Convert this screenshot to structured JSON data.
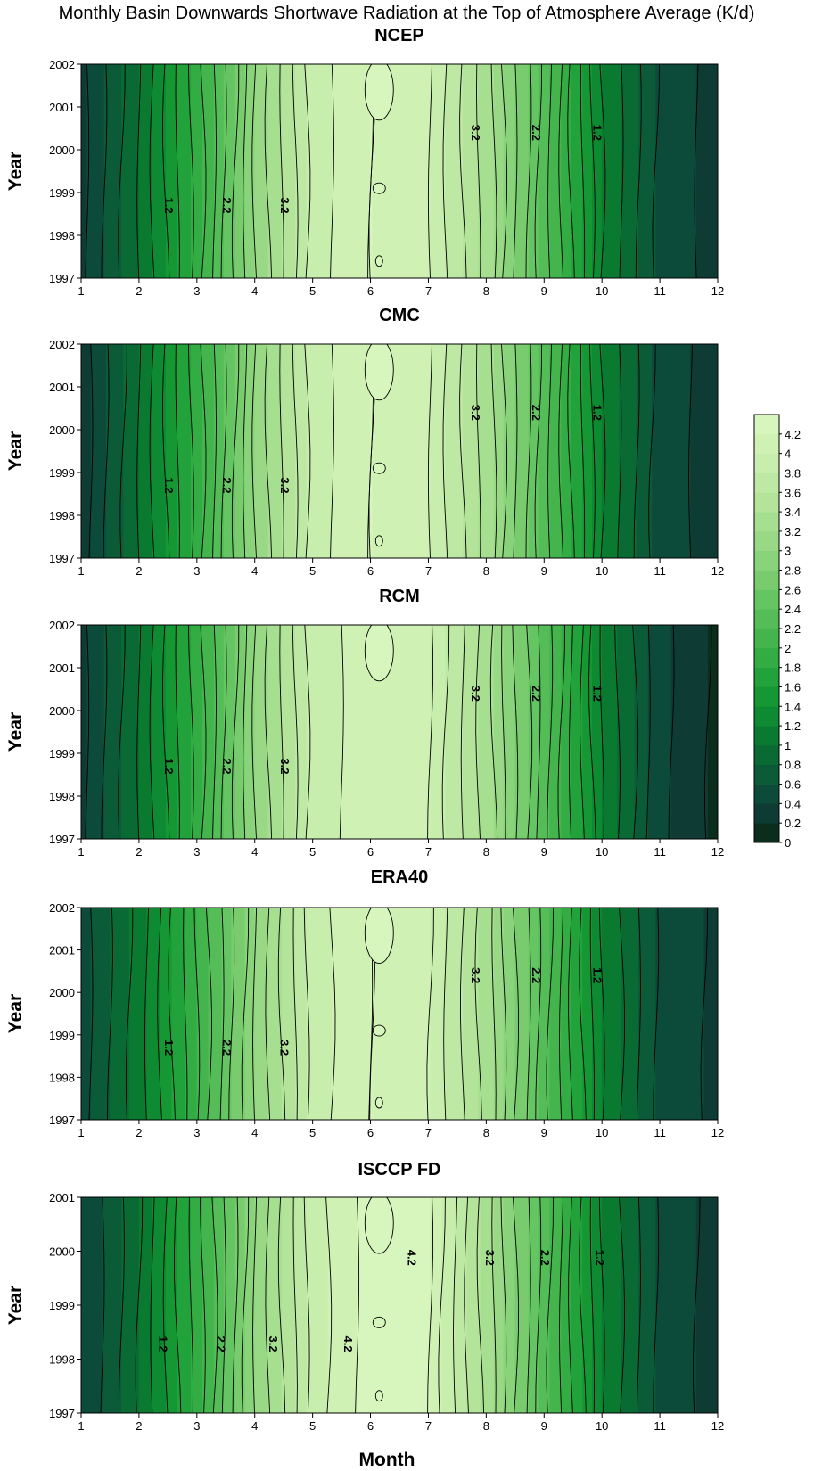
{
  "chart_data": {
    "type": "heatmap",
    "title": "Monthly Basin Downwards Shortwave Radiation at the Top of Atmosphere Average (K/d)",
    "xlabel": "Month",
    "ylabel": "Year",
    "x_ticks": [
      "1",
      "2",
      "3",
      "4",
      "5",
      "6",
      "7",
      "8",
      "9",
      "10",
      "11",
      "12"
    ],
    "xlim": [
      1,
      12
    ],
    "months": [
      1,
      2,
      3,
      4,
      5,
      6,
      7,
      8,
      9,
      10,
      11,
      12
    ],
    "colorbar": {
      "ticks": [
        "0",
        "0.2",
        "0.4",
        "0.6",
        "0.8",
        "1",
        "1.2",
        "1.4",
        "1.6",
        "1.8",
        "2",
        "2.2",
        "2.4",
        "2.6",
        "2.8",
        "3",
        "3.2",
        "3.4",
        "3.6",
        "3.8",
        "4",
        "4.2"
      ],
      "range": [
        0,
        4.4
      ],
      "step": 0.2,
      "colors": [
        "#0b2e1c",
        "#0e3b33",
        "#0c4a3a",
        "#0b5a38",
        "#0a6a34",
        "#0b7a31",
        "#0d8a32",
        "#159834",
        "#22a23a",
        "#32ac43",
        "#44b54d",
        "#55bd58",
        "#66c563",
        "#78cc6e",
        "#89d37a",
        "#99d985",
        "#a7df90",
        "#b3e49a",
        "#bee9a4",
        "#c7eeac",
        "#cff2b4",
        "#d7f6bd"
      ]
    },
    "panels": [
      {
        "name": "NCEP",
        "y_ticks": [
          "1997",
          "1998",
          "1999",
          "2000",
          "2001",
          "2002"
        ],
        "ylim": [
          1997,
          2002
        ],
        "profile": [
          0.35,
          1.0,
          1.9,
          3.0,
          3.9,
          4.2,
          4.0,
          3.3,
          2.3,
          1.2,
          0.55,
          0.3
        ],
        "contour_labels": [
          "1.2",
          "2.2",
          "3.2",
          "3.2",
          "2.2",
          "1.2"
        ],
        "grid": false
      },
      {
        "name": "CMC",
        "y_ticks": [
          "1997",
          "1998",
          "1999",
          "2000",
          "2001",
          "2002"
        ],
        "ylim": [
          1997,
          2002
        ],
        "profile": [
          0.3,
          1.0,
          1.9,
          3.0,
          3.9,
          4.2,
          4.0,
          3.3,
          2.3,
          1.2,
          0.5,
          0.3
        ],
        "contour_labels": [
          "1.2",
          "2.2",
          "3.2",
          "3.2",
          "2.2",
          "1.2"
        ],
        "grid": false
      },
      {
        "name": "RCM",
        "y_ticks": [
          "1997",
          "1998",
          "1999",
          "2000",
          "2001",
          "2002"
        ],
        "ylim": [
          1997,
          2002
        ],
        "profile": [
          0.35,
          1.0,
          1.9,
          3.0,
          3.9,
          4.1,
          4.0,
          3.3,
          2.3,
          1.2,
          0.45,
          0.15
        ],
        "contour_labels": [
          "1.2",
          "2.2",
          "3.2",
          "3.2",
          "2.2",
          "1.2"
        ],
        "grid": false
      },
      {
        "name": "ERA40",
        "y_ticks": [
          "1997",
          "1998",
          "1999",
          "2000",
          "2001",
          "2002"
        ],
        "ylim": [
          1997,
          2002
        ],
        "profile": [
          0.5,
          1.1,
          2.0,
          3.0,
          3.9,
          4.2,
          4.0,
          3.3,
          2.3,
          1.2,
          0.55,
          0.35
        ],
        "contour_labels": [
          "1.2",
          "2.2",
          "3.2",
          "3.2",
          "2.2",
          "1.2"
        ],
        "grid": false
      },
      {
        "name": "ISCCP FD",
        "y_ticks": [
          "1997",
          "1998",
          "1999",
          "2000",
          "2001"
        ],
        "ylim": [
          1997,
          2001
        ],
        "profile": [
          0.4,
          1.0,
          1.9,
          3.0,
          3.9,
          4.3,
          4.2,
          3.3,
          2.3,
          1.2,
          0.55,
          0.3
        ],
        "contour_labels": [
          "1.2",
          "2.2",
          "3.2",
          "4.2",
          "4.2",
          "3.2",
          "2.2",
          "1.2"
        ],
        "grid": false
      }
    ]
  }
}
